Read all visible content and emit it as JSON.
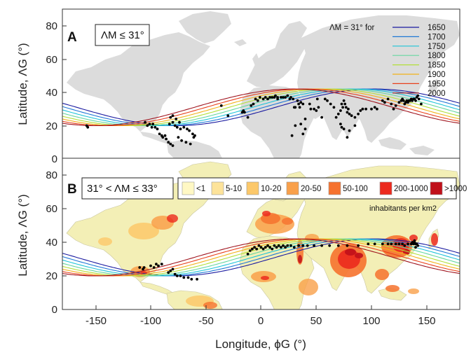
{
  "chart_data": {
    "type": "line",
    "shared": {
      "xlabel": "Longitude, ϕG (°)",
      "ylabel": "Latitude, ΛG (°)",
      "xlim": [
        -180,
        180
      ],
      "ylim": [
        0,
        90
      ],
      "xticks": [
        -150,
        -100,
        -50,
        0,
        50,
        100,
        150
      ],
      "yticks": [
        0,
        20,
        40,
        60,
        80
      ]
    },
    "iso_years": [
      1650,
      1700,
      1750,
      1800,
      1850,
      1900,
      1950,
      2000
    ],
    "iso_colors": [
      "#1a1aa0",
      "#1f78d6",
      "#1ec4d8",
      "#66d6a0",
      "#b2df3a",
      "#f2b21a",
      "#e8401a",
      "#a0141e"
    ],
    "iso_phase_shift_deg": [
      0,
      10.5,
      21,
      31.5,
      42,
      52.5,
      63,
      73.5
    ],
    "iso_model": {
      "mean_lat": 31,
      "amplitude": 11,
      "base_peak_lon": 103
    },
    "panelA": {
      "letter": "A",
      "condition": "ΛM ≤ 31°",
      "legend_title": "ΛM = 31° for",
      "points": [
        [
          -158,
          20
        ],
        [
          -157,
          19
        ],
        [
          -105,
          22
        ],
        [
          -103,
          20
        ],
        [
          -101,
          21
        ],
        [
          -99,
          19
        ],
        [
          -98,
          21
        ],
        [
          -96,
          19
        ],
        [
          -94,
          18
        ],
        [
          -92,
          15
        ],
        [
          -90,
          14
        ],
        [
          -89,
          13
        ],
        [
          -87,
          14
        ],
        [
          -86,
          12
        ],
        [
          -84,
          10
        ],
        [
          -82,
          9
        ],
        [
          -80,
          8
        ],
        [
          -83,
          21
        ],
        [
          -80,
          22
        ],
        [
          -78,
          20
        ],
        [
          -76,
          19
        ],
        [
          -73,
          18
        ],
        [
          -70,
          19
        ],
        [
          -67,
          18
        ],
        [
          -65,
          17
        ],
        [
          -62,
          15
        ],
        [
          -61,
          13
        ],
        [
          -75,
          13
        ],
        [
          -72,
          11
        ],
        [
          -68,
          10
        ],
        [
          -64,
          9
        ],
        [
          -60,
          14
        ],
        [
          -82,
          25
        ],
        [
          -80,
          26
        ],
        [
          -77,
          24
        ],
        [
          -74,
          22
        ],
        [
          -36,
          32
        ],
        [
          -30,
          26
        ],
        [
          -17,
          28
        ],
        [
          -16,
          29
        ],
        [
          -15,
          28
        ],
        [
          -9,
          32
        ],
        [
          -7,
          33
        ],
        [
          -5,
          36
        ],
        [
          -3,
          35
        ],
        [
          -1,
          37
        ],
        [
          2,
          36
        ],
        [
          4,
          37
        ],
        [
          6,
          36
        ],
        [
          8,
          37
        ],
        [
          10,
          37
        ],
        [
          12,
          37
        ],
        [
          13,
          38
        ],
        [
          15,
          37
        ],
        [
          15,
          36
        ],
        [
          18,
          37
        ],
        [
          20,
          37
        ],
        [
          22,
          37
        ],
        [
          24,
          38
        ],
        [
          26,
          36
        ],
        [
          27,
          37
        ],
        [
          29,
          36
        ],
        [
          30,
          31
        ],
        [
          31,
          31
        ],
        [
          33,
          35
        ],
        [
          34,
          33
        ],
        [
          35,
          31
        ],
        [
          36,
          34
        ],
        [
          38,
          33
        ],
        [
          40,
          24
        ],
        [
          44,
          33
        ],
        [
          45,
          30
        ],
        [
          48,
          30
        ],
        [
          50,
          29
        ],
        [
          51,
          36
        ],
        [
          52,
          31
        ],
        [
          55,
          25
        ],
        [
          58,
          36
        ],
        [
          60,
          35
        ],
        [
          63,
          33
        ],
        [
          66,
          31
        ],
        [
          68,
          25
        ],
        [
          70,
          27
        ],
        [
          72,
          29
        ],
        [
          73,
          33
        ],
        [
          74,
          31
        ],
        [
          75,
          35
        ],
        [
          76,
          33
        ],
        [
          77,
          31
        ],
        [
          78,
          28
        ],
        [
          79,
          30
        ],
        [
          80,
          27
        ],
        [
          82,
          26
        ],
        [
          85,
          25
        ],
        [
          88,
          27
        ],
        [
          90,
          29
        ],
        [
          92,
          30
        ],
        [
          95,
          30
        ],
        [
          85,
          20
        ],
        [
          72,
          21
        ],
        [
          73,
          19
        ],
        [
          75,
          18
        ],
        [
          80,
          17
        ],
        [
          78,
          13
        ],
        [
          40,
          18
        ],
        [
          38,
          15
        ],
        [
          36,
          21
        ],
        [
          31,
          20
        ],
        [
          28,
          14
        ],
        [
          110,
          35
        ],
        [
          112,
          34
        ],
        [
          115,
          36
        ],
        [
          118,
          33
        ],
        [
          120,
          30
        ],
        [
          122,
          32
        ],
        [
          125,
          34
        ],
        [
          127,
          35
        ],
        [
          128,
          36
        ],
        [
          129,
          35
        ],
        [
          130,
          33
        ],
        [
          131,
          34
        ],
        [
          132,
          35
        ],
        [
          133,
          34
        ],
        [
          134,
          35
        ],
        [
          135,
          35
        ],
        [
          136,
          36
        ],
        [
          137,
          35
        ],
        [
          138,
          36
        ],
        [
          139,
          36
        ],
        [
          140,
          35
        ],
        [
          141,
          37
        ],
        [
          142,
          38
        ],
        [
          143,
          36
        ],
        [
          145,
          33
        ],
        [
          100,
          30
        ],
        [
          103,
          31
        ],
        [
          105,
          30
        ],
        [
          -12,
          25
        ]
      ]
    },
    "panelB": {
      "letter": "B",
      "condition": "31° < ΛM ≤ 33°",
      "density_caption": "inhabitants per km2",
      "density_bins": [
        {
          "label": "<1",
          "color": "#fff8c4"
        },
        {
          "label": "5-10",
          "color": "#fde39a"
        },
        {
          "label": "10-20",
          "color": "#fcc86a"
        },
        {
          "label": "20-50",
          "color": "#f9a04a"
        },
        {
          "label": "50-100",
          "color": "#f6722e"
        },
        {
          "label": "200-1000",
          "color": "#ec2a1e"
        },
        {
          "label": ">1000",
          "color": "#c0101a"
        }
      ],
      "points": [
        [
          -110,
          25
        ],
        [
          -107,
          24
        ],
        [
          -106,
          25
        ],
        [
          -100,
          26
        ],
        [
          -97,
          25
        ],
        [
          -95,
          27
        ],
        [
          -93,
          26
        ],
        [
          -90,
          27
        ],
        [
          -84,
          22
        ],
        [
          -82,
          23
        ],
        [
          -80,
          24
        ],
        [
          -78,
          21
        ],
        [
          -76,
          20
        ],
        [
          -73,
          20
        ],
        [
          -70,
          19
        ],
        [
          -66,
          19
        ],
        [
          -63,
          18
        ],
        [
          -58,
          18
        ],
        [
          -12,
          33
        ],
        [
          -10,
          35
        ],
        [
          -8,
          36
        ],
        [
          -6,
          37
        ],
        [
          -4,
          36
        ],
        [
          -2,
          38
        ],
        [
          0,
          37
        ],
        [
          2,
          36
        ],
        [
          4,
          37
        ],
        [
          6,
          38
        ],
        [
          8,
          37
        ],
        [
          10,
          36
        ],
        [
          12,
          38
        ],
        [
          14,
          37
        ],
        [
          16,
          38
        ],
        [
          18,
          37
        ],
        [
          20,
          38
        ],
        [
          22,
          37
        ],
        [
          24,
          38
        ],
        [
          27,
          38
        ],
        [
          30,
          37
        ],
        [
          34,
          38
        ],
        [
          38,
          38
        ],
        [
          42,
          38
        ],
        [
          48,
          38
        ],
        [
          55,
          38
        ],
        [
          62,
          38
        ],
        [
          70,
          38
        ],
        [
          78,
          38
        ],
        [
          88,
          38
        ],
        [
          97,
          39
        ],
        [
          103,
          39
        ],
        [
          110,
          39
        ],
        [
          115,
          39
        ],
        [
          118,
          39
        ],
        [
          122,
          39
        ],
        [
          125,
          39
        ],
        [
          128,
          39
        ],
        [
          130,
          38
        ],
        [
          133,
          39
        ],
        [
          136,
          39
        ],
        [
          137,
          40
        ],
        [
          138,
          39
        ],
        [
          139,
          40
        ],
        [
          140,
          39
        ],
        [
          141,
          39
        ],
        [
          142,
          38
        ],
        [
          140,
          37
        ],
        [
          139,
          41
        ]
      ]
    }
  }
}
